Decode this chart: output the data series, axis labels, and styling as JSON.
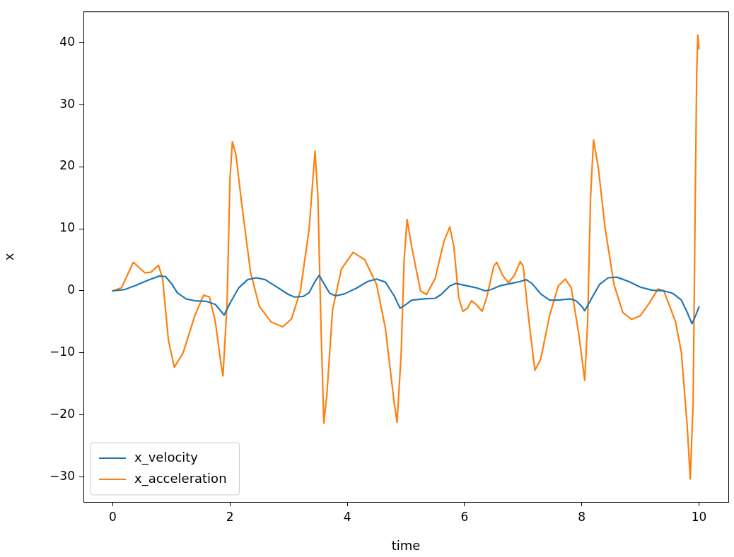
{
  "chart_data": {
    "type": "line",
    "xlabel": "time",
    "ylabel": "x",
    "xlim": [
      -0.5,
      10.5
    ],
    "xticks": [
      0,
      2,
      4,
      6,
      8,
      10
    ],
    "ylim": [
      -34,
      45
    ],
    "yticks": [
      -30,
      -20,
      -10,
      0,
      10,
      20,
      30,
      40
    ],
    "legend": "bottom left",
    "line_style": "solid",
    "marker": "none",
    "series": [
      {
        "name": "x_velocity",
        "color": "#1f77b4",
        "x": [
          0,
          0.2,
          0.4,
          0.6,
          0.8,
          0.9,
          1.0,
          1.1,
          1.25,
          1.4,
          1.6,
          1.75,
          1.9,
          2.0,
          2.15,
          2.3,
          2.45,
          2.6,
          2.8,
          3.0,
          3.1,
          3.25,
          3.35,
          3.45,
          3.52,
          3.6,
          3.7,
          3.8,
          3.95,
          4.15,
          4.35,
          4.5,
          4.65,
          4.8,
          4.9,
          5.0,
          5.1,
          5.3,
          5.5,
          5.6,
          5.75,
          5.85,
          6.0,
          6.2,
          6.35,
          6.45,
          6.6,
          6.8,
          6.95,
          7.05,
          7.15,
          7.3,
          7.45,
          7.6,
          7.8,
          7.9,
          8.0,
          8.05,
          8.15,
          8.3,
          8.45,
          8.6,
          8.8,
          9.0,
          9.2,
          9.4,
          9.55,
          9.7,
          9.8,
          9.88,
          9.95,
          10.0
        ],
        "values": [
          0,
          0.2,
          0.9,
          1.7,
          2.4,
          2.3,
          1.2,
          -0.3,
          -1.3,
          -1.6,
          -1.7,
          -2.2,
          -3.9,
          -2,
          0.5,
          1.8,
          2.1,
          1.8,
          0.6,
          -0.6,
          -1.0,
          -0.9,
          -0.3,
          1.5,
          2.5,
          1.2,
          -0.4,
          -0.8,
          -0.5,
          0.4,
          1.5,
          1.9,
          1.4,
          -0.8,
          -2.8,
          -2.2,
          -1.5,
          -1.3,
          -1.2,
          -0.6,
          0.8,
          1.2,
          0.9,
          0.5,
          0.0,
          0.2,
          0.8,
          1.2,
          1.5,
          1.8,
          1.2,
          -0.5,
          -1.5,
          -1.5,
          -1.3,
          -1.6,
          -2.5,
          -3.2,
          -1.5,
          1,
          2.1,
          2.2,
          1.5,
          0.6,
          0.1,
          0.0,
          -0.4,
          -1.5,
          -3.5,
          -5.3,
          -3.8,
          -2.6
        ]
      },
      {
        "name": "x_acceleration",
        "color": "#ff7f0e",
        "x": [
          0,
          0.15,
          0.35,
          0.55,
          0.65,
          0.78,
          0.85,
          0.95,
          1.05,
          1.2,
          1.4,
          1.55,
          1.65,
          1.75,
          1.85,
          1.88,
          1.95,
          2.0,
          2.04,
          2.1,
          2.2,
          2.35,
          2.5,
          2.7,
          2.9,
          3.05,
          3.2,
          3.35,
          3.45,
          3.5,
          3.55,
          3.6,
          3.65,
          3.75,
          3.9,
          4.1,
          4.3,
          4.5,
          4.65,
          4.8,
          4.85,
          4.92,
          4.97,
          5.02,
          5.1,
          5.25,
          5.35,
          5.5,
          5.65,
          5.75,
          5.82,
          5.9,
          5.97,
          6.05,
          6.12,
          6.2,
          6.3,
          6.38,
          6.5,
          6.55,
          6.65,
          6.75,
          6.85,
          6.95,
          7.0,
          7.1,
          7.2,
          7.3,
          7.45,
          7.6,
          7.72,
          7.82,
          7.95,
          8.05,
          8.1,
          8.15,
          8.2,
          8.28,
          8.4,
          8.55,
          8.7,
          8.85,
          9.0,
          9.15,
          9.3,
          9.4,
          9.5,
          9.6,
          9.7,
          9.8,
          9.85,
          9.9,
          9.93,
          9.96,
          9.98,
          10.0
        ],
        "values": [
          0,
          0.5,
          4.6,
          2.9,
          3.0,
          4.1,
          2,
          -8,
          -12.3,
          -10,
          -4,
          -0.7,
          -1,
          -5,
          -12,
          -13.7,
          -2,
          18,
          24,
          22,
          14,
          3,
          -2.5,
          -5,
          -5.8,
          -4.5,
          0,
          10,
          22.5,
          15,
          -5,
          -21.3,
          -17,
          -3,
          3.5,
          6.2,
          5,
          1,
          -6,
          -18,
          -21.2,
          -10,
          5,
          11.5,
          7,
          0,
          -0.6,
          2,
          8,
          10.3,
          7,
          -1,
          -3.3,
          -2.8,
          -1.6,
          -2.2,
          -3.3,
          -1,
          4,
          4.6,
          2.5,
          1.3,
          2.5,
          4.7,
          4,
          -5,
          -12.8,
          -11,
          -4,
          0.8,
          1.9,
          0.5,
          -7,
          -14.4,
          -5,
          15,
          24.3,
          20,
          10,
          1,
          -3.5,
          -4.6,
          -4,
          -2,
          0.3,
          0,
          -2.5,
          -5,
          -10,
          -22,
          -30.3,
          -18,
          10,
          35,
          41.2,
          39
        ]
      }
    ]
  }
}
